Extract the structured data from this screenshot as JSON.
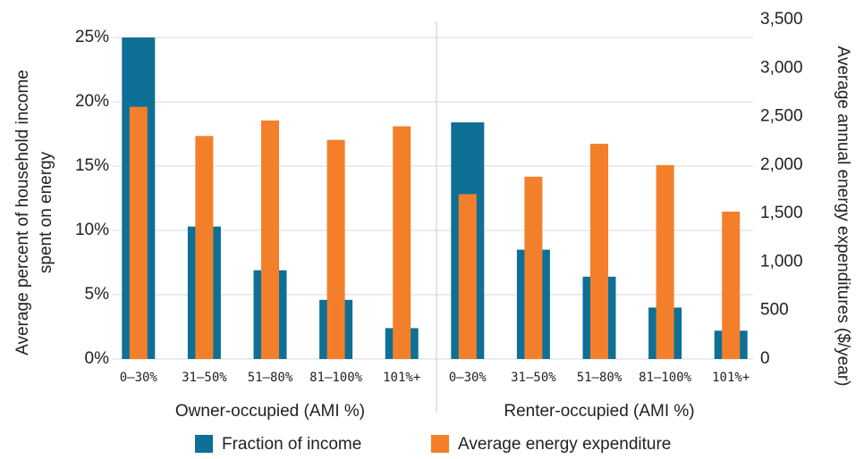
{
  "chart_data": {
    "type": "bar",
    "categories": [
      "0–30%",
      "31–50%",
      "51–80%",
      "81–100%",
      "101%+",
      "0–30%",
      "31–50%",
      "51–80%",
      "81–100%",
      "101%+"
    ],
    "groups": [
      "Owner-occupied (AMI %)",
      "Renter-occupied (AMI %)"
    ],
    "series": [
      {
        "name": "Fraction of income",
        "color": "#0e6f97",
        "values": [
          25,
          10.3,
          6.9,
          4.6,
          2.4,
          18.4,
          8.5,
          6.4,
          4.0,
          2.2
        ]
      },
      {
        "name": "Average energy expenditure",
        "color": "#f47f2a",
        "axis": "y2",
        "values": [
          2600,
          2300,
          2460,
          2260,
          2400,
          1700,
          1880,
          2220,
          2000,
          1520
        ]
      }
    ],
    "ylabel": [
      "Average percent of household income",
      "spent on energy"
    ],
    "y2label": "Average annual energy expenditures ($/year)",
    "ylim": [
      0,
      25
    ],
    "yticks": [
      {
        "value": 0,
        "label": "0%"
      },
      {
        "value": 5,
        "label": "5%"
      },
      {
        "value": 10,
        "label": "10%"
      },
      {
        "value": 15,
        "label": "15%"
      },
      {
        "value": 20,
        "label": "20%"
      },
      {
        "value": 25,
        "label": "25%"
      }
    ],
    "y2lim": [
      0,
      3500
    ],
    "y2ticks": [
      0,
      500,
      {
        "value": 1000,
        "label": "1,000"
      },
      {
        "value": 1500,
        "label": "1,500"
      },
      {
        "value": 2000,
        "label": "2,000"
      },
      {
        "value": 2500,
        "label": "2,500"
      },
      {
        "value": 3000,
        "label": "3,000"
      },
      {
        "value": 3500,
        "label": "3,500"
      }
    ],
    "grid": true,
    "legend": "bottom"
  }
}
